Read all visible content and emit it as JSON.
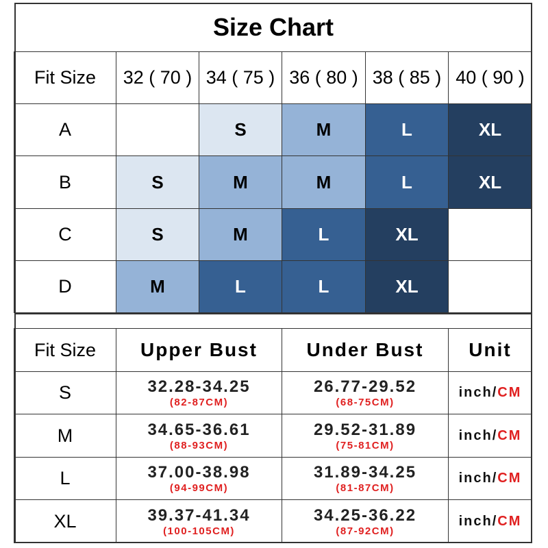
{
  "title": "Size Chart",
  "fit_table": {
    "corner": "Fit Size",
    "columns": [
      "32 ( 70 )",
      "34 ( 75 )",
      "36 ( 80 )",
      "38 ( 85 )",
      "40 ( 90 )"
    ],
    "rows": [
      {
        "cup": "A",
        "sizes": [
          "",
          "S",
          "M",
          "L",
          "XL"
        ]
      },
      {
        "cup": "B",
        "sizes": [
          "S",
          "M",
          "M",
          "L",
          "XL"
        ]
      },
      {
        "cup": "C",
        "sizes": [
          "S",
          "M",
          "L",
          "XL",
          ""
        ]
      },
      {
        "cup": "D",
        "sizes": [
          "M",
          "L",
          "L",
          "XL",
          ""
        ]
      }
    ],
    "size_colors": {
      "S": "#dce6f1",
      "M": "#95b3d7",
      "L": "#366092",
      "XL": "#243f60"
    }
  },
  "measure_table": {
    "headers": [
      "Fit Size",
      "Upper Bust",
      "Under Bust",
      "Unit"
    ],
    "unit_inch": "inch/",
    "unit_cm": "CM",
    "rows": [
      {
        "size": "S",
        "upper": "32.28-34.25",
        "upper_cm": "(82-87CM)",
        "under": "26.77-29.52",
        "under_cm": "(68-75CM)"
      },
      {
        "size": "M",
        "upper": "34.65-36.61",
        "upper_cm": "(88-93CM)",
        "under": "29.52-31.89",
        "under_cm": "(75-81CM)"
      },
      {
        "size": "L",
        "upper": "37.00-38.98",
        "upper_cm": "(94-99CM)",
        "under": "31.89-34.25",
        "under_cm": "(81-87CM)"
      },
      {
        "size": "XL",
        "upper": "39.37-41.34",
        "upper_cm": "(100-105CM)",
        "under": "34.25-36.22",
        "under_cm": "(87-92CM)"
      }
    ]
  }
}
